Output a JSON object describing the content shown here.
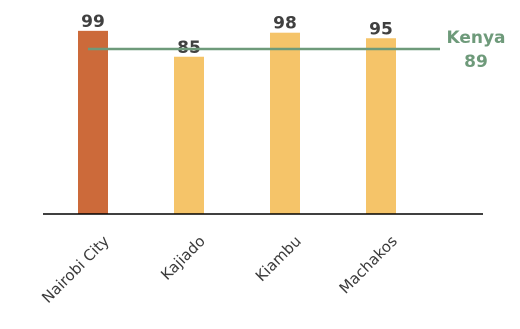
{
  "chart_data": {
    "type": "bar",
    "categories": [
      "Nairobi City",
      "Kajiado",
      "Kiambu",
      "Machakos"
    ],
    "values": [
      99,
      85,
      98,
      95
    ],
    "ylim": [
      0,
      100
    ],
    "highlight_index": 0,
    "reference_line": {
      "label": "Kenya",
      "value": 89
    },
    "colors": {
      "highlight_bar": "#CC6A3A",
      "bar": "#F5C469",
      "reference_line": "#6E9A7A",
      "reference_text": "#6E9A7A",
      "axis": "#000000",
      "value_text": "#404040"
    },
    "grid": false,
    "legend": "none"
  }
}
